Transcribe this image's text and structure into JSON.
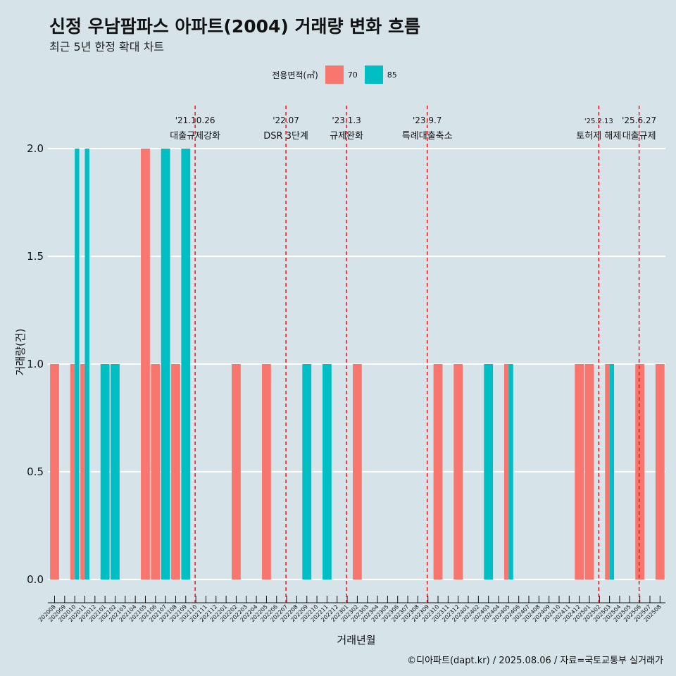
{
  "title": "신정 우남팜파스 아파트(2004) 거래량 변화 흐름",
  "subtitle": "최근 5년 한정 확대 차트",
  "footer": "©디아파트(dapt.kr) / 2025.08.06 / 자료=국토교통부 실거래가",
  "legend": {
    "title": "전용면적(㎡)",
    "items": [
      {
        "label": "70",
        "color": "#f8766d"
      },
      {
        "label": "85",
        "color": "#00bfc4"
      }
    ]
  },
  "chart_data": {
    "type": "bar",
    "xlabel": "거래년월",
    "ylabel": "거래량(건)",
    "ylim": [
      0,
      2
    ],
    "yticks": [
      "0.0",
      "0.5",
      "1.0",
      "1.5",
      "2.0"
    ],
    "categories": [
      "202008",
      "202009",
      "202010",
      "202011",
      "202012",
      "202101",
      "202102",
      "202103",
      "202104",
      "202105",
      "202106",
      "202107",
      "202108",
      "202109",
      "202110",
      "202111",
      "202112",
      "202201",
      "202202",
      "202203",
      "202204",
      "202205",
      "202206",
      "202207",
      "202208",
      "202209",
      "202210",
      "202211",
      "202212",
      "202301",
      "202302",
      "202303",
      "202304",
      "202305",
      "202306",
      "202307",
      "202308",
      "202309",
      "202310",
      "202311",
      "202312",
      "202401",
      "202402",
      "202403",
      "202404",
      "202405",
      "202406",
      "202407",
      "202408",
      "202409",
      "202410",
      "202411",
      "202412",
      "202501",
      "202502",
      "202503",
      "202504",
      "202505",
      "202506",
      "202507",
      "202508"
    ],
    "series": [
      {
        "name": "70",
        "color": "#f8766d",
        "values": [
          1,
          0,
          1,
          1,
          0,
          0,
          0,
          0,
          0,
          2,
          1,
          0,
          1,
          0,
          0,
          0,
          0,
          0,
          1,
          0,
          0,
          1,
          0,
          0,
          0,
          0,
          0,
          0,
          0,
          0,
          1,
          0,
          0,
          0,
          0,
          0,
          0,
          0,
          1,
          0,
          1,
          0,
          0,
          0,
          0,
          1,
          0,
          0,
          0,
          0,
          0,
          0,
          1,
          1,
          0,
          1,
          0,
          0,
          1,
          0,
          1
        ]
      },
      {
        "name": "85",
        "color": "#00bfc4",
        "values": [
          0,
          0,
          2,
          2,
          0,
          1,
          1,
          0,
          0,
          0,
          0,
          2,
          0,
          2,
          0,
          0,
          0,
          0,
          0,
          0,
          0,
          0,
          0,
          0,
          0,
          1,
          0,
          1,
          0,
          0,
          0,
          0,
          0,
          0,
          0,
          0,
          0,
          0,
          0,
          0,
          0,
          0,
          0,
          1,
          0,
          1,
          0,
          0,
          0,
          0,
          0,
          0,
          0,
          0,
          0,
          1,
          0,
          0,
          0,
          0,
          0
        ]
      }
    ],
    "annotations": [
      {
        "date_label": "'21.10.26",
        "text": "대출규제강화",
        "at": "202110"
      },
      {
        "date_label": "'22.07",
        "text": "DSR 3단계",
        "at": "202207"
      },
      {
        "date_label": "'23.1.3",
        "text": "규제완화",
        "at": "202301"
      },
      {
        "date_label": "'23.9.7",
        "text": "특례대출축소",
        "at": "202309"
      },
      {
        "date_label": "'25.2.13",
        "text": "토허제 해제",
        "at": "202502"
      },
      {
        "date_label": "'25.6.27",
        "text": "대출규제",
        "at": "202506"
      }
    ],
    "grid": true,
    "legend_position": "top"
  }
}
